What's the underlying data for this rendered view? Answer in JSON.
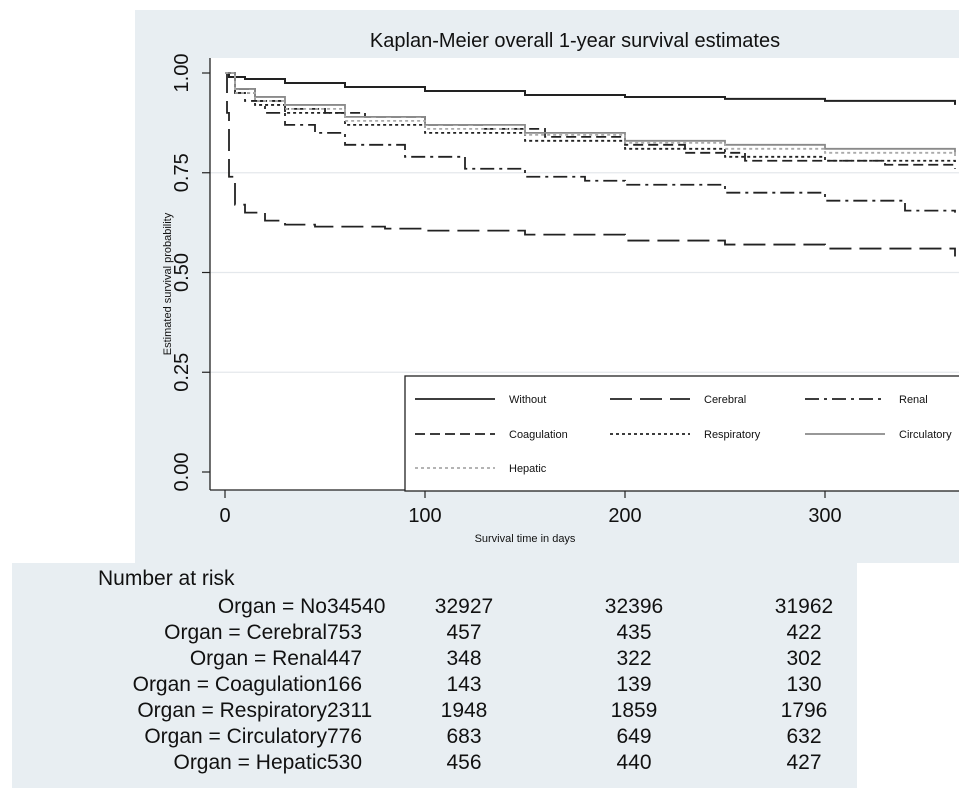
{
  "chart_data": {
    "type": "line",
    "title": "Kaplan-Meier overall 1-year survival estimates",
    "xlabel": "Survival time in days",
    "ylabel": "Estimated survival probability",
    "xlim": [
      0,
      365
    ],
    "ylim": [
      0,
      1
    ],
    "x_ticks": [
      "0",
      "100",
      "200",
      "300"
    ],
    "y_ticks": [
      "0.00",
      "0.25",
      "0.50",
      "0.75",
      "1.00"
    ],
    "grid": true,
    "legend_position": "bottom-right",
    "series": [
      {
        "name": "Without",
        "style": "solid",
        "color": "#222222",
        "x": [
          0,
          2,
          10,
          30,
          60,
          100,
          150,
          200,
          250,
          300,
          365
        ],
        "y": [
          1.0,
          0.99,
          0.985,
          0.975,
          0.965,
          0.955,
          0.945,
          0.94,
          0.935,
          0.93,
          0.92
        ]
      },
      {
        "name": "Cerebral",
        "style": "longdash",
        "color": "#222222",
        "x": [
          0,
          1,
          2,
          5,
          10,
          20,
          30,
          45,
          60,
          80,
          100,
          150,
          200,
          250,
          300,
          365
        ],
        "y": [
          1.0,
          0.9,
          0.74,
          0.67,
          0.65,
          0.63,
          0.62,
          0.615,
          0.615,
          0.61,
          0.605,
          0.595,
          0.58,
          0.57,
          0.56,
          0.54
        ]
      },
      {
        "name": "Renal",
        "style": "dashdot",
        "color": "#222222",
        "x": [
          0,
          5,
          10,
          20,
          30,
          45,
          60,
          90,
          120,
          150,
          180,
          200,
          250,
          300,
          340,
          365
        ],
        "y": [
          1.0,
          0.95,
          0.93,
          0.9,
          0.87,
          0.85,
          0.82,
          0.79,
          0.76,
          0.74,
          0.73,
          0.72,
          0.7,
          0.68,
          0.655,
          0.65
        ]
      },
      {
        "name": "Coagulation",
        "style": "dash",
        "color": "#222222",
        "x": [
          0,
          5,
          15,
          30,
          50,
          70,
          100,
          130,
          160,
          200,
          230,
          260,
          300,
          330,
          365
        ],
        "y": [
          1.0,
          0.96,
          0.93,
          0.91,
          0.9,
          0.89,
          0.87,
          0.86,
          0.84,
          0.82,
          0.8,
          0.78,
          0.78,
          0.77,
          0.76
        ]
      },
      {
        "name": "Respiratory",
        "style": "dotted",
        "color": "#222222",
        "x": [
          0,
          5,
          15,
          30,
          60,
          100,
          150,
          200,
          250,
          300,
          365
        ],
        "y": [
          1.0,
          0.95,
          0.92,
          0.9,
          0.87,
          0.85,
          0.83,
          0.81,
          0.79,
          0.78,
          0.77
        ]
      },
      {
        "name": "Circulatory",
        "style": "solid",
        "color": "#8a8a8a",
        "x": [
          0,
          5,
          15,
          30,
          60,
          100,
          150,
          200,
          250,
          300,
          365
        ],
        "y": [
          1.0,
          0.96,
          0.94,
          0.92,
          0.89,
          0.87,
          0.85,
          0.83,
          0.82,
          0.81,
          0.8
        ]
      },
      {
        "name": "Hepatic",
        "style": "dotted",
        "color": "#aaaaaa",
        "x": [
          0,
          5,
          15,
          30,
          60,
          100,
          150,
          200,
          250,
          300,
          365
        ],
        "y": [
          1.0,
          0.95,
          0.93,
          0.91,
          0.88,
          0.86,
          0.845,
          0.825,
          0.81,
          0.8,
          0.79
        ]
      }
    ]
  },
  "risk_table": {
    "title": "Number at risk",
    "rows": [
      {
        "label": "Organ = No",
        "n0": "34540",
        "values": [
          "32927",
          "32396",
          "31962"
        ]
      },
      {
        "label": "Organ = Cerebral",
        "n0": "753",
        "values": [
          "457",
          "435",
          "422"
        ]
      },
      {
        "label": "Organ = Renal",
        "n0": "447",
        "values": [
          "348",
          "322",
          "302"
        ]
      },
      {
        "label": "Organ = Coagulation",
        "n0": "166",
        "values": [
          "143",
          "139",
          "130"
        ]
      },
      {
        "label": "Organ = Respiratory",
        "n0": "2311",
        "values": [
          "1948",
          "1859",
          "1796"
        ]
      },
      {
        "label": "Organ = Circulatory",
        "n0": "776",
        "values": [
          "683",
          "649",
          "632"
        ]
      },
      {
        "label": "Organ = Hepatic",
        "n0": "530",
        "values": [
          "456",
          "440",
          "427"
        ]
      }
    ]
  }
}
